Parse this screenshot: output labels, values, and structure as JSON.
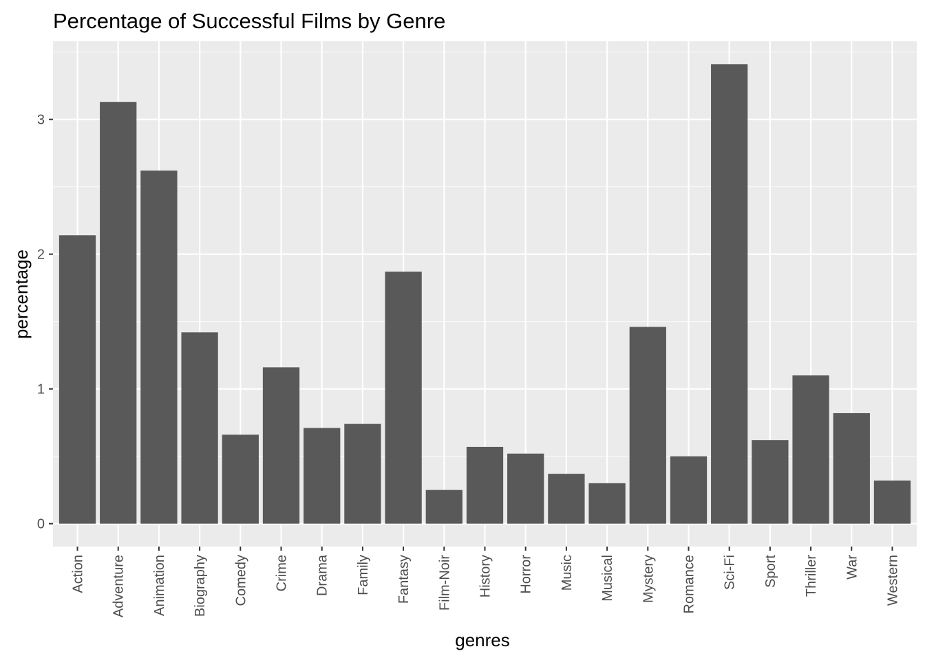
{
  "chart_data": {
    "type": "bar",
    "title": "Percentage of Successful Films by Genre",
    "xlabel": "genres",
    "ylabel": "percentage",
    "ylim": [
      -0.17,
      3.58
    ],
    "yticks": [
      0,
      1,
      2,
      3
    ],
    "grid": true,
    "colors": {
      "panel": "#ebebeb",
      "grid_major": "#ffffff",
      "bar": "#595959",
      "tick": "#333333"
    },
    "categories": [
      "Action",
      "Adventure",
      "Animation",
      "Biography",
      "Comedy",
      "Crime",
      "Drama",
      "Family",
      "Fantasy",
      "Film-Noir",
      "History",
      "Horror",
      "Music",
      "Musical",
      "Mystery",
      "Romance",
      "Sci-Fi",
      "Sport",
      "Thriller",
      "War",
      "Western"
    ],
    "values": [
      2.14,
      3.13,
      2.62,
      1.42,
      0.66,
      1.16,
      0.71,
      0.74,
      1.87,
      0.25,
      0.57,
      0.52,
      0.37,
      0.3,
      1.46,
      0.5,
      3.41,
      0.62,
      1.1,
      0.82,
      0.32
    ]
  }
}
